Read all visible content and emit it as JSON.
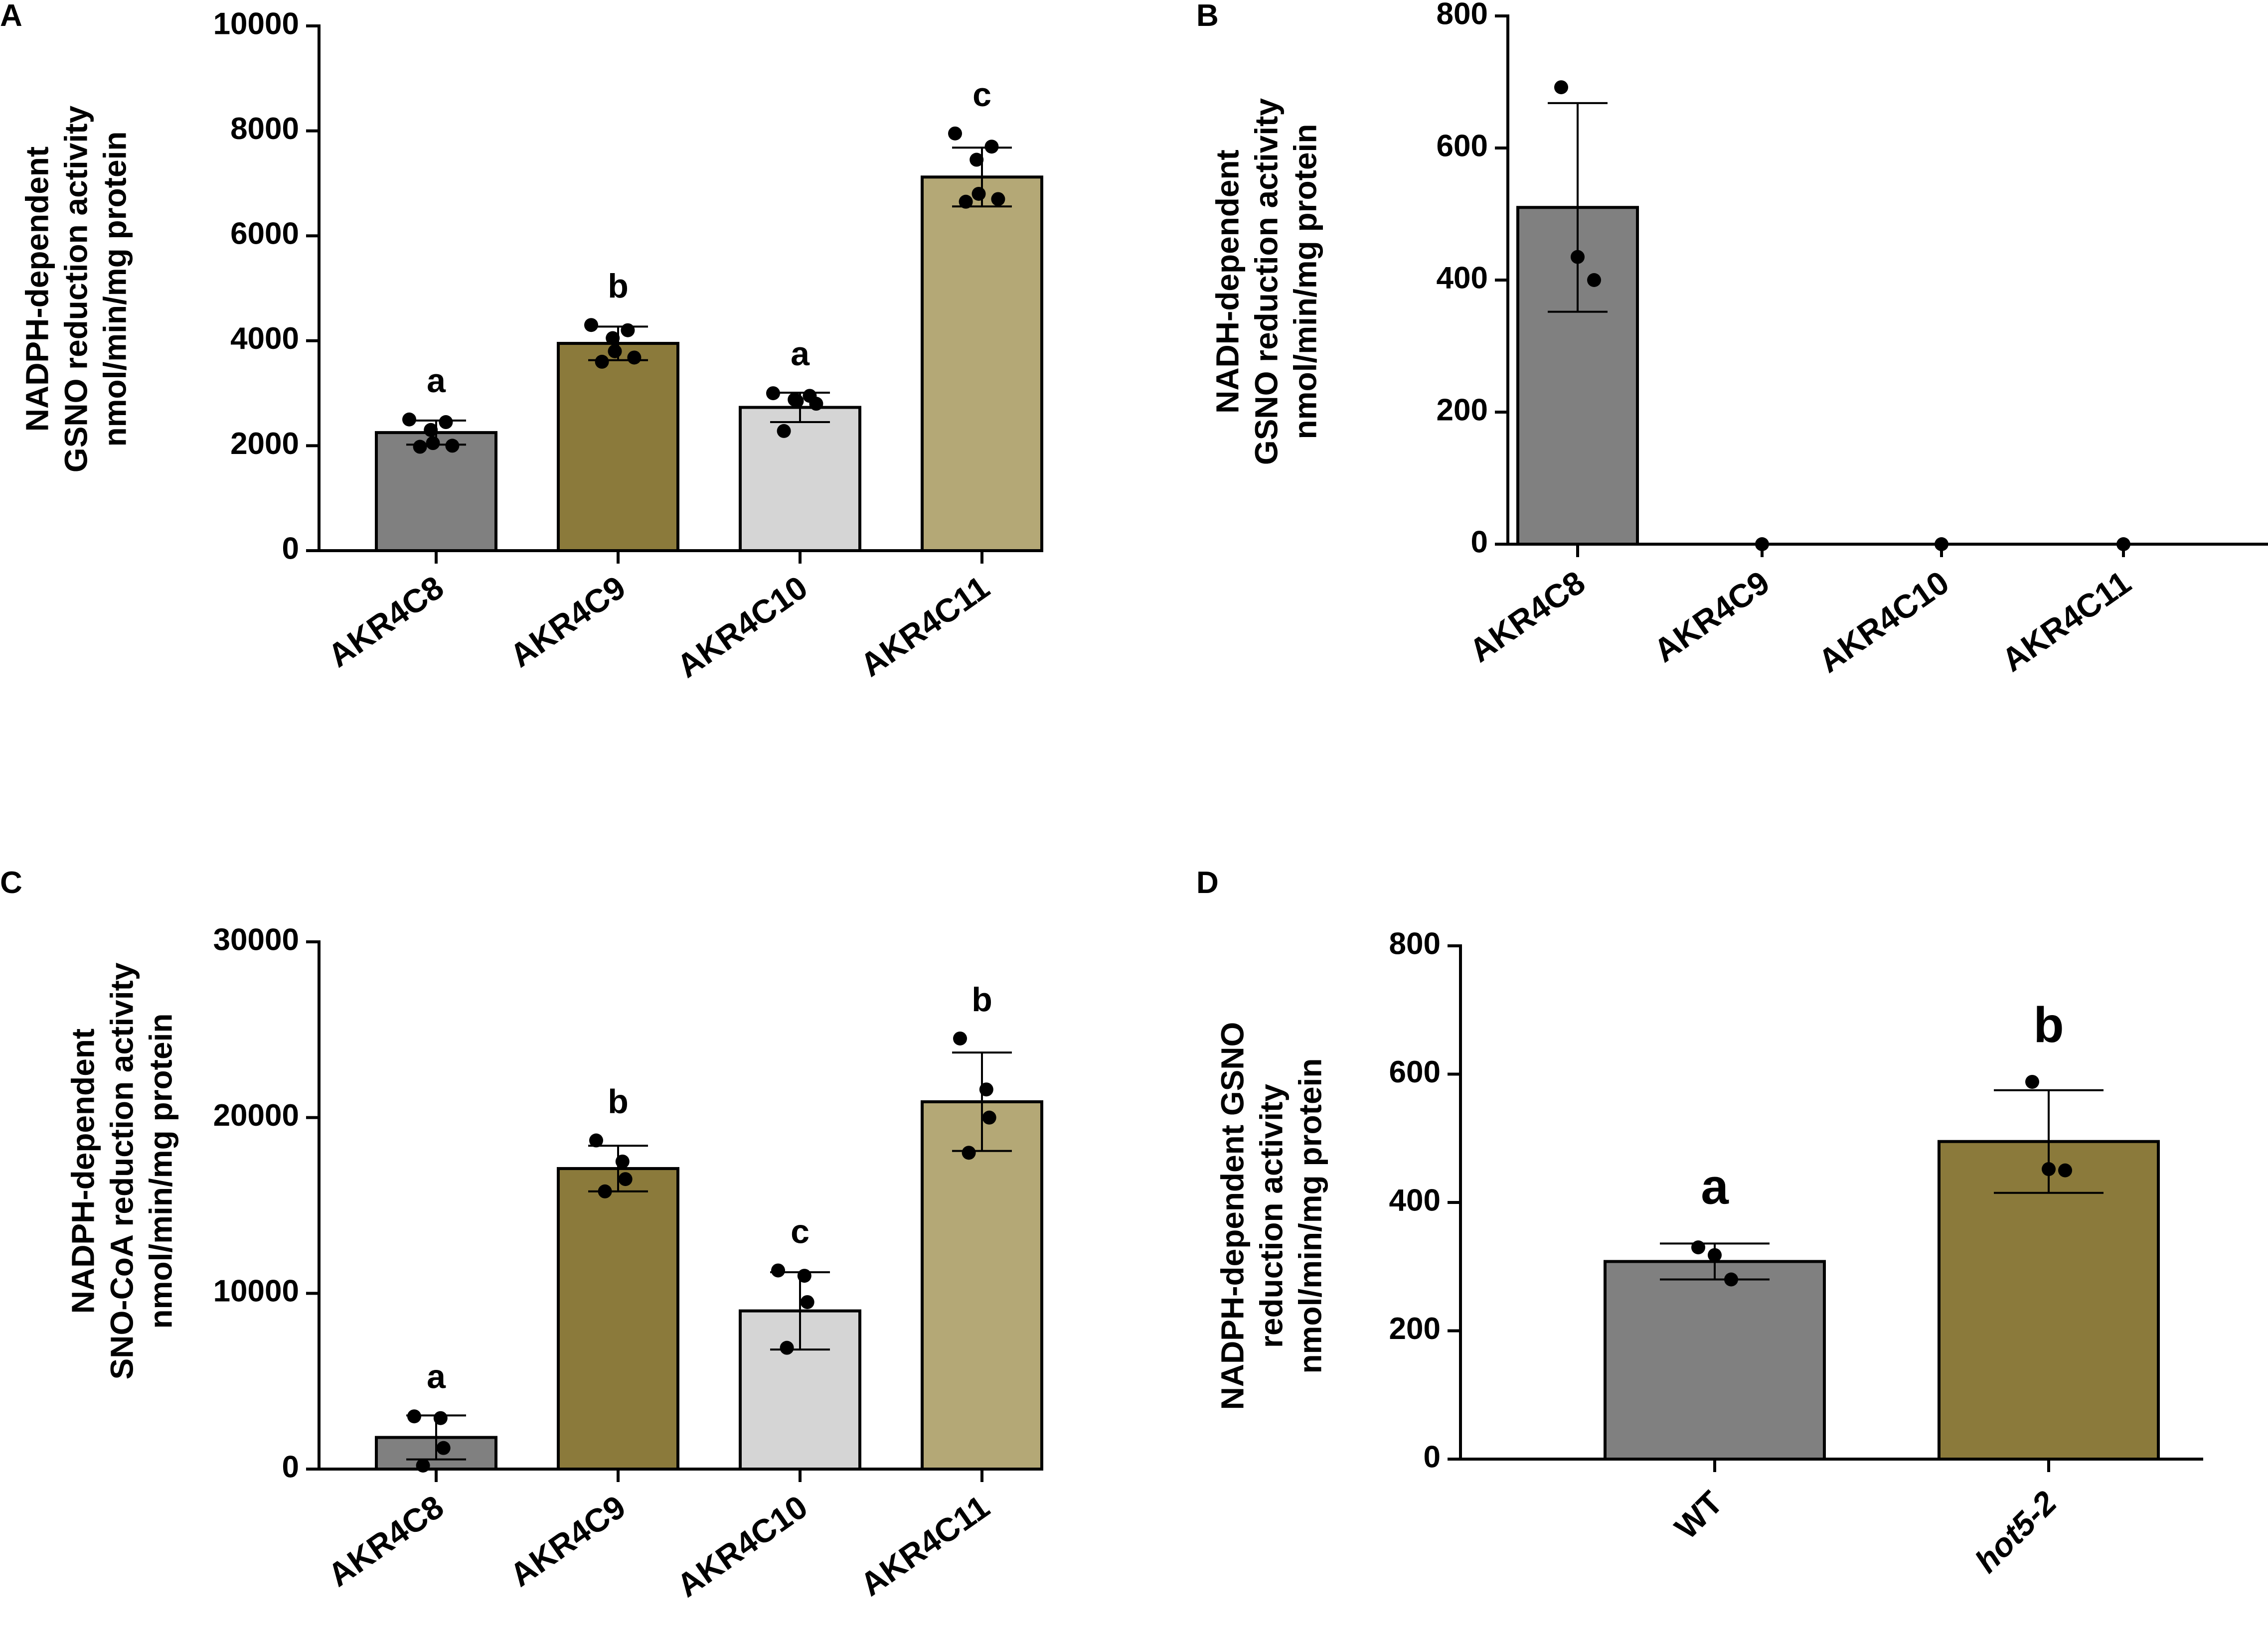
{
  "chart_data": [
    {
      "panel": "A",
      "type": "bar",
      "ylabel_lines": [
        "NADPH-dependent",
        "GSNO reduction activity",
        "nmol/min/mg protein"
      ],
      "categories": [
        "AKR4C8",
        "AKR4C9",
        "AKR4C10",
        "AKR4C11"
      ],
      "values": [
        2250,
        3950,
        2730,
        7120
      ],
      "errors": [
        230,
        320,
        280,
        560
      ],
      "points": [
        [
          2500,
          2450,
          2300,
          2050,
          2000,
          1980
        ],
        [
          4300,
          4200,
          4050,
          3800,
          3680,
          3600
        ],
        [
          3000,
          2950,
          2880,
          2850,
          2800,
          2280
        ],
        [
          7950,
          7700,
          7450,
          6800,
          6700,
          6650
        ]
      ],
      "significance": [
        "a",
        "b",
        "a",
        "c"
      ],
      "colors": [
        "#808080",
        "#8b7a3b",
        "#d5d5d5",
        "#b4a876"
      ],
      "ylim": [
        0,
        10000
      ],
      "yticks": [
        0,
        2000,
        4000,
        6000,
        8000,
        10000
      ]
    },
    {
      "panel": "B",
      "type": "bar",
      "ylabel_lines": [
        "NADH-dependent",
        "GSNO reduction activity",
        "nmol/min/mg protein"
      ],
      "categories": [
        "AKR4C8",
        "AKR4C9",
        "AKR4C10",
        "AKR4C11"
      ],
      "values": [
        510,
        0,
        0,
        0
      ],
      "errors": [
        158,
        0,
        0,
        0
      ],
      "points": [
        [
          692,
          435,
          400
        ],
        [
          0
        ],
        [
          0
        ],
        [
          0
        ]
      ],
      "significance": [
        "",
        "",
        "",
        ""
      ],
      "colors": [
        "#808080",
        "#808080",
        "#808080",
        "#808080"
      ],
      "ylim": [
        0,
        800
      ],
      "yticks": [
        0,
        200,
        400,
        600,
        800
      ]
    },
    {
      "panel": "C",
      "type": "bar",
      "ylabel_lines": [
        "NADPH-dependent",
        "SNO-CoA reduction activity",
        "nmol/min/mg protein"
      ],
      "categories": [
        "AKR4C8",
        "AKR4C9",
        "AKR4C10",
        "AKR4C11"
      ],
      "values": [
        1800,
        17100,
        9000,
        20900
      ],
      "errors": [
        1250,
        1300,
        2200,
        2800
      ],
      "points": [
        [
          3000,
          2900,
          1200,
          200
        ],
        [
          18700,
          17500,
          16500,
          15800
        ],
        [
          11300,
          11000,
          9500,
          6900
        ],
        [
          24500,
          21600,
          20000,
          18000
        ]
      ],
      "significance": [
        "a",
        "b",
        "c",
        "b"
      ],
      "colors": [
        "#808080",
        "#8b7a3b",
        "#d5d5d5",
        "#b4a876"
      ],
      "ylim": [
        0,
        30000
      ],
      "yticks": [
        0,
        10000,
        20000,
        30000
      ]
    },
    {
      "panel": "D",
      "type": "bar",
      "ylabel_lines": [
        "NADPH-dependent GSNO",
        "reduction activity",
        "nmol/min/mg protein"
      ],
      "categories": [
        "WT",
        "hot5-2"
      ],
      "italic_categories": [
        false,
        true
      ],
      "values": [
        308,
        495
      ],
      "errors": [
        28,
        80
      ],
      "points": [
        [
          330,
          318,
          280
        ],
        [
          588,
          452,
          450
        ]
      ],
      "significance": [
        "a",
        "b"
      ],
      "colors": [
        "#808080",
        "#8b7a3b"
      ],
      "ylim": [
        0,
        800
      ],
      "yticks": [
        0,
        200,
        400,
        600,
        800
      ]
    }
  ]
}
